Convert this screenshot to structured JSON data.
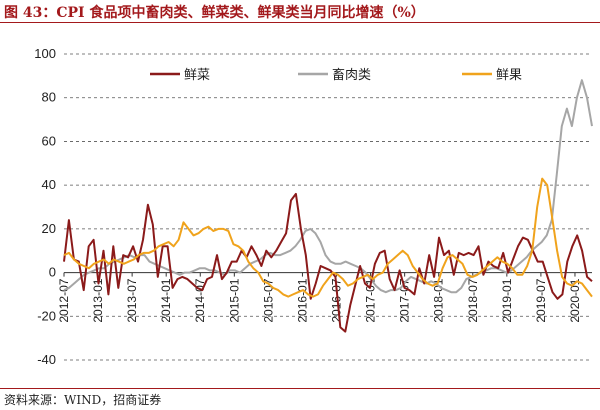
{
  "header": {
    "title": "图 43：CPI 食品项中畜肉类、鲜菜类、鲜果类当月同比增速（%）"
  },
  "footer": {
    "source": "资料来源：WIND，招商证券"
  },
  "chart_data": {
    "type": "line",
    "title": "图 43：CPI 食品项中畜肉类、鲜菜类、鲜果类当月同比增速（%）",
    "xlabel": "",
    "ylabel": "",
    "ylim": [
      -40,
      100
    ],
    "yticks": [
      -40,
      -20,
      0,
      20,
      40,
      60,
      80,
      100
    ],
    "grid": "horizontal dashed",
    "legend_position": "top",
    "xticks": [
      "2012-07",
      "2013-01",
      "2013-07",
      "2014-01",
      "2014-07",
      "2015-01",
      "2015-07",
      "2016-01",
      "2016-07",
      "2017-01",
      "2017-07",
      "2018-01",
      "2018-07",
      "2019-01",
      "2019-07",
      "2020-01"
    ],
    "x_start": "2012-07",
    "x_end": "2020-04",
    "series": [
      {
        "name": "鲜菜",
        "color": "#8b1a1a",
        "values": [
          5,
          24,
          6,
          5,
          -8,
          12,
          15,
          -5,
          10,
          -10,
          12,
          -7,
          8,
          7,
          12,
          5,
          15,
          31,
          22,
          -2,
          12,
          12,
          -7,
          -3,
          -2,
          -3,
          -5,
          -7,
          -8,
          -3,
          -2,
          8,
          -3,
          0,
          5,
          5,
          10,
          7,
          12,
          8,
          3,
          10,
          7,
          10,
          14,
          18,
          33,
          36,
          20,
          8,
          -12,
          -5,
          3,
          2,
          1,
          -2,
          -25,
          -27,
          -15,
          -6,
          3,
          -5,
          -7,
          4,
          9,
          10,
          -3,
          -8,
          1,
          -7,
          -8,
          -10,
          2,
          -5,
          8,
          -2,
          16,
          8,
          10,
          -1,
          9,
          8,
          9,
          8,
          12,
          -1,
          5,
          3,
          2,
          9,
          0,
          6,
          12,
          16,
          15,
          10,
          5,
          5,
          -2,
          -9,
          -12,
          -10,
          5,
          12,
          17,
          10,
          -2,
          -4
        ]
      },
      {
        "name": "畜肉类",
        "color": "#a6a6a6",
        "values": [
          -8,
          -7,
          -5,
          -3,
          -1,
          0,
          1,
          2,
          2,
          4,
          5,
          6,
          7,
          8,
          7,
          8,
          8,
          5,
          4,
          3,
          2,
          1,
          0,
          -1,
          0,
          0,
          1,
          2,
          2,
          1,
          1,
          0,
          -1,
          1,
          1,
          0,
          2,
          4,
          5,
          6,
          8,
          9,
          8,
          8,
          9,
          10,
          12,
          15,
          19,
          20,
          18,
          14,
          8,
          5,
          4,
          4,
          5,
          4,
          3,
          2,
          0,
          -3,
          -6,
          -8,
          -9,
          -8,
          -8,
          -7,
          -4,
          -2,
          -3,
          -4,
          -5,
          -4,
          -5,
          -7,
          -8,
          -9,
          -9,
          -7,
          -3,
          -2,
          -1,
          0,
          1,
          2,
          2,
          1,
          0,
          1,
          3,
          5,
          7,
          10,
          12,
          14,
          17,
          24,
          45,
          67,
          75,
          67,
          80,
          88,
          80,
          67
        ]
      },
      {
        "name": "鲜果",
        "color": "#f0a31c",
        "values": [
          8,
          9,
          6,
          4,
          3,
          2,
          4,
          5,
          6,
          4,
          6,
          5,
          4,
          5,
          6,
          8,
          9,
          9,
          10,
          12,
          13,
          14,
          12,
          15,
          23,
          20,
          17,
          18,
          20,
          21,
          19,
          20,
          20,
          19,
          13,
          12,
          10,
          5,
          2,
          0,
          -4,
          -5,
          -7,
          -8,
          -10,
          -11,
          -10,
          -9,
          -8,
          -10,
          -11,
          -10,
          -6,
          -3,
          0,
          -1,
          -3,
          -6,
          -5,
          -3,
          -2,
          -1,
          -3,
          -1,
          0,
          4,
          6,
          8,
          10,
          8,
          3,
          0,
          -3,
          -5,
          -6,
          -5,
          2,
          7,
          8,
          6,
          4,
          -1,
          -2,
          -1,
          1,
          3,
          5,
          7,
          5,
          4,
          2,
          -1,
          -1,
          3,
          10,
          30,
          43,
          40,
          25,
          10,
          -2,
          -5,
          -6,
          -4,
          -5,
          -8,
          -11
        ]
      }
    ]
  }
}
